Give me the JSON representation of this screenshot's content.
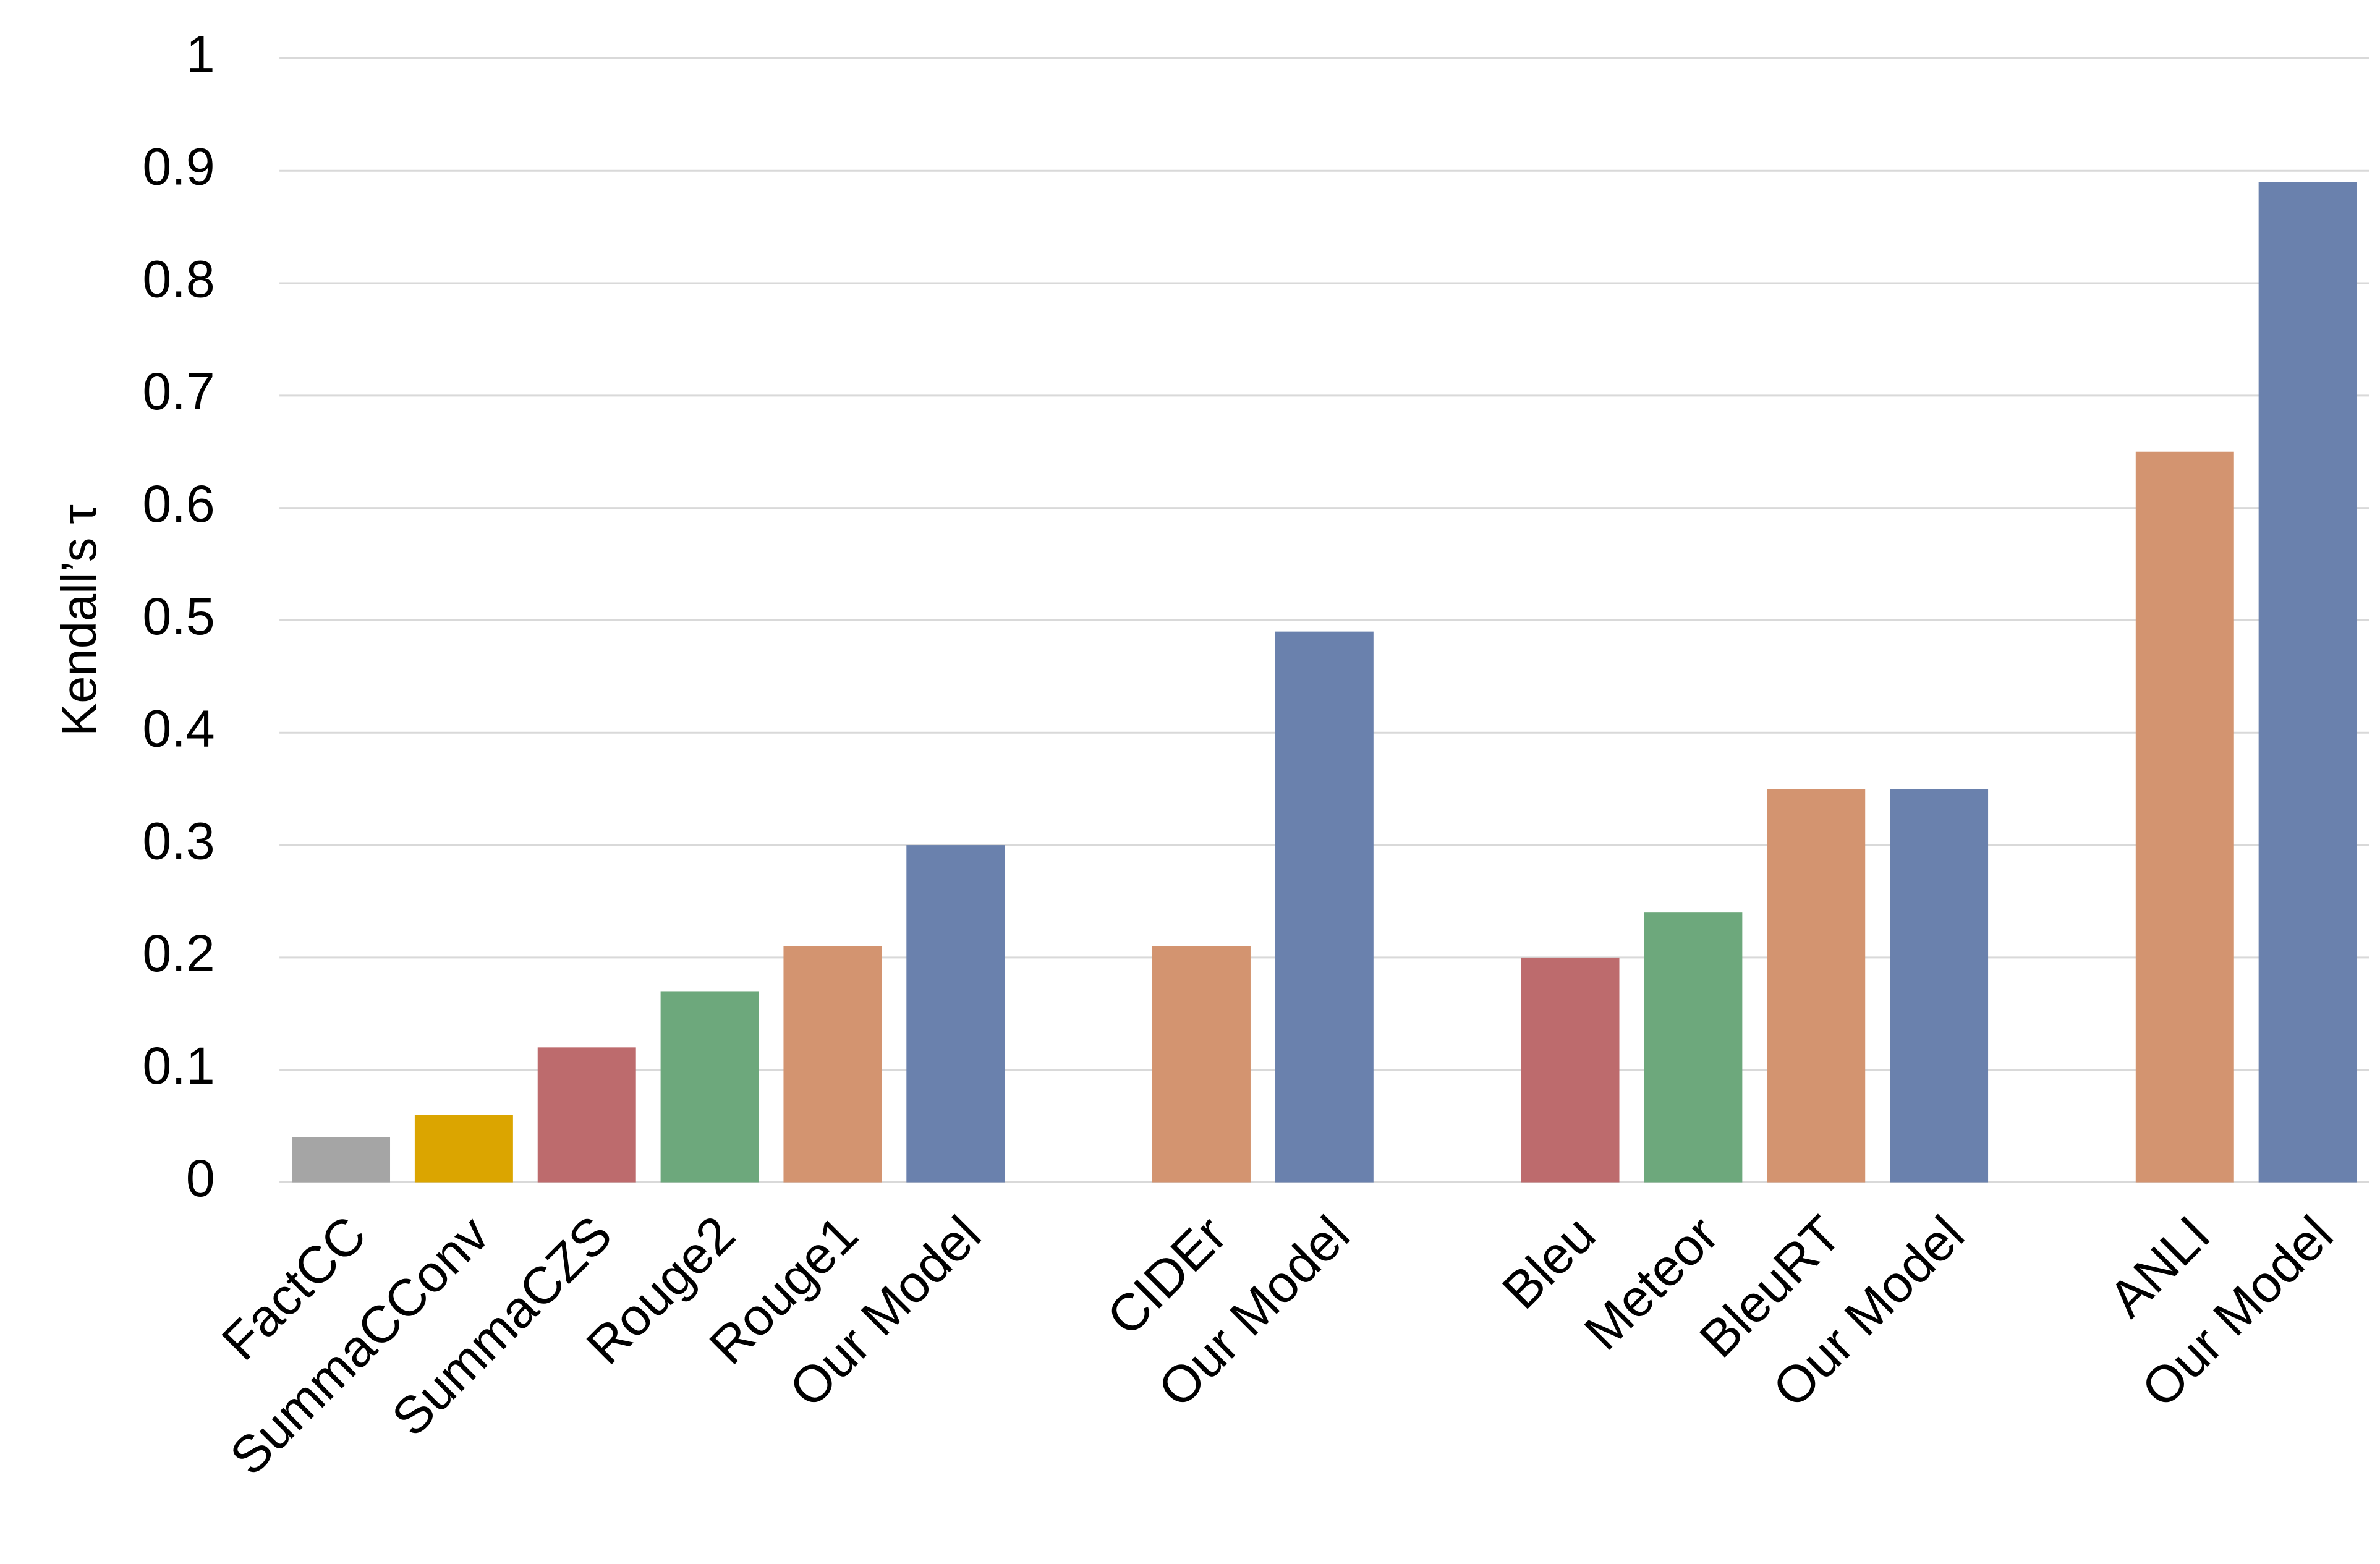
{
  "chart_data": {
    "type": "bar",
    "y_label": "Kendall’s τ",
    "categories": [
      "FactCC",
      "SummaCConv",
      "SummaCZS",
      "Rouge2",
      "Rouge1",
      "Our Model",
      null,
      "CIDEr",
      "Our Model",
      null,
      "Bleu",
      "Meteor",
      "BleuRT",
      "Our Model",
      null,
      "ANLI",
      "Our Model"
    ],
    "values": [
      0.04,
      0.06,
      0.12,
      0.17,
      0.21,
      0.3,
      null,
      0.21,
      0.49,
      null,
      0.2,
      0.24,
      0.35,
      0.35,
      null,
      0.65,
      0.89
    ],
    "colors": [
      "#a5a5a5",
      "#dba500",
      "#bd6b6d",
      "#6da87c",
      "#d39470",
      "#6a81ad",
      null,
      "#d39470",
      "#6a81ad",
      null,
      "#bd6b6d",
      "#6da87c",
      "#d39470",
      "#6a81ad",
      null,
      "#d39470",
      "#6a81ad"
    ],
    "ylim": [
      0,
      1
    ],
    "yticks": [
      0,
      0.1,
      0.2,
      0.3,
      0.4,
      0.5,
      0.6,
      0.7,
      0.8,
      0.9,
      1
    ],
    "grid": true
  }
}
